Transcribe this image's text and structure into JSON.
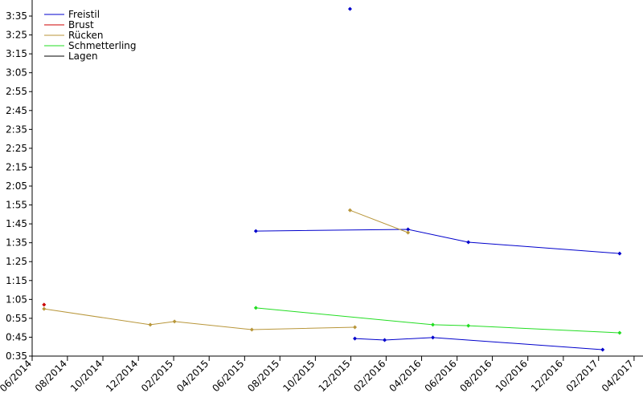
{
  "chart_data": {
    "type": "line",
    "series": [
      {
        "name": "Freistil",
        "color": "#0000cc",
        "x": [
          2015.47,
          2016.186,
          2016.47,
          2017.182,
          null,
          2015.913,
          null,
          2015.936,
          2016.076,
          2016.303,
          2017.102
        ],
        "values": [
          101.2,
          102.1,
          95.3,
          89.3,
          null,
          218.8,
          null,
          44.3,
          43.5,
          44.8,
          38.4
        ]
      },
      {
        "name": "Brust",
        "color": "#cc0000",
        "x": [
          2014.473
        ],
        "values": [
          62.2
        ]
      },
      {
        "name": "Rücken",
        "color": "#b8963a",
        "x": [
          2014.473,
          2014.973,
          2015.087,
          2015.451,
          2015.936,
          null,
          2015.913,
          2016.186
        ],
        "values": [
          60.0,
          51.6,
          53.3,
          49.0,
          50.3,
          null,
          112.2,
          100.4
        ]
      },
      {
        "name": "Schmetterling",
        "color": "#22dd22",
        "x": [
          2015.47,
          2016.303,
          2016.47,
          2017.182
        ],
        "values": [
          60.5,
          51.6,
          51.1,
          47.3
        ]
      },
      {
        "name": "Lagen",
        "color": "#000000",
        "x": [],
        "values": []
      }
    ],
    "xlim": [
      2014.417,
      2017.292
    ],
    "xticks": [
      {
        "value": 2014.417,
        "label": "06/2014"
      },
      {
        "value": 2014.583,
        "label": "08/2014"
      },
      {
        "value": 2014.75,
        "label": "10/2014"
      },
      {
        "value": 2014.917,
        "label": "12/2014"
      },
      {
        "value": 2015.083,
        "label": "02/2015"
      },
      {
        "value": 2015.25,
        "label": "04/2015"
      },
      {
        "value": 2015.417,
        "label": "06/2015"
      },
      {
        "value": 2015.583,
        "label": "08/2015"
      },
      {
        "value": 2015.75,
        "label": "10/2015"
      },
      {
        "value": 2015.917,
        "label": "12/2015"
      },
      {
        "value": 2016.083,
        "label": "02/2016"
      },
      {
        "value": 2016.25,
        "label": "04/2016"
      },
      {
        "value": 2016.417,
        "label": "06/2016"
      },
      {
        "value": 2016.583,
        "label": "08/2016"
      },
      {
        "value": 2016.75,
        "label": "10/2016"
      },
      {
        "value": 2016.917,
        "label": "12/2016"
      },
      {
        "value": 2017.083,
        "label": "02/2017"
      },
      {
        "value": 2017.25,
        "label": "04/2017"
      }
    ],
    "ylim": [
      35,
      223.5
    ],
    "yticks": [
      {
        "value": 35,
        "label": "0:35"
      },
      {
        "value": 45,
        "label": "0:45"
      },
      {
        "value": 55,
        "label": "0:55"
      },
      {
        "value": 65,
        "label": "1:05"
      },
      {
        "value": 75,
        "label": "1:15"
      },
      {
        "value": 85,
        "label": "1:25"
      },
      {
        "value": 95,
        "label": "1:35"
      },
      {
        "value": 105,
        "label": "1:45"
      },
      {
        "value": 115,
        "label": "1:55"
      },
      {
        "value": 125,
        "label": "2:05"
      },
      {
        "value": 135,
        "label": "2:15"
      },
      {
        "value": 145,
        "label": "2:25"
      },
      {
        "value": 155,
        "label": "2:35"
      },
      {
        "value": 165,
        "label": "2:45"
      },
      {
        "value": 175,
        "label": "2:55"
      },
      {
        "value": 185,
        "label": "3:05"
      },
      {
        "value": 195,
        "label": "3:15"
      },
      {
        "value": 205,
        "label": "3:25"
      },
      {
        "value": 215,
        "label": "3:35"
      }
    ],
    "legend": "upper left"
  }
}
